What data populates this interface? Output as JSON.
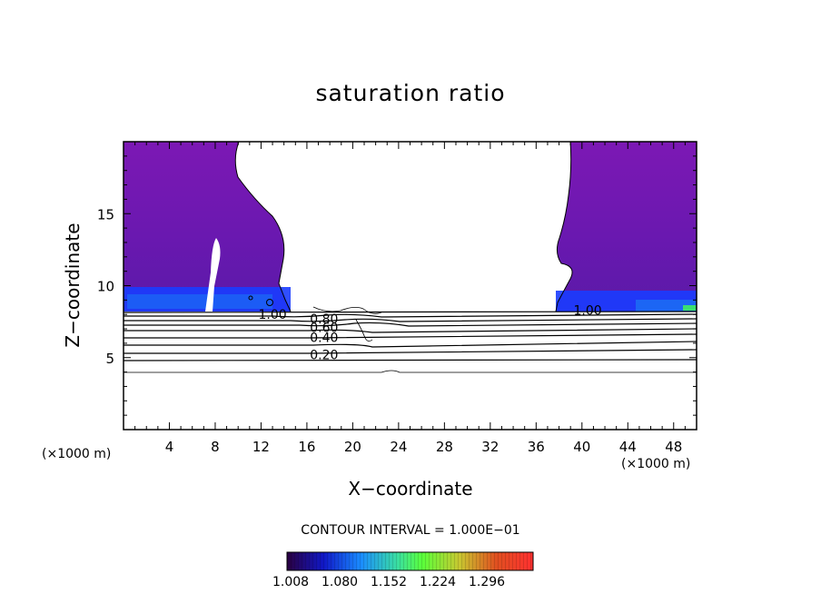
{
  "chart_data": {
    "type": "heatmap",
    "title": "saturation ratio",
    "xlabel": "X−coordinate",
    "ylabel": "Z−coordinate",
    "x_units": "(×1000 m)",
    "y_units": "(×1000 m)",
    "xlim": [
      0,
      50
    ],
    "ylim": [
      0,
      20
    ],
    "x_ticks": [
      4,
      8,
      12,
      16,
      20,
      24,
      28,
      32,
      36,
      40,
      44,
      48
    ],
    "y_ticks": [
      5,
      10,
      15
    ],
    "contour_interval_text": "CONTOUR INTERVAL = 1.000E−01",
    "contour_labels": [
      {
        "text": "1.00",
        "x": 13,
        "z": 8.0
      },
      {
        "text": "0.80",
        "x": 17.5,
        "z": 7.7
      },
      {
        "text": "0.60",
        "x": 17.5,
        "z": 7.1
      },
      {
        "text": "0.40",
        "x": 17.5,
        "z": 6.4
      },
      {
        "text": "0.20",
        "x": 17.5,
        "z": 5.2
      },
      {
        "text": "1.00",
        "x": 40.5,
        "z": 8.3
      }
    ],
    "colorbar": {
      "ticks": [
        "1.008",
        "1.080",
        "1.152",
        "1.224",
        "1.296"
      ],
      "colors": [
        "#2a0040",
        "#1018c8",
        "#1a8cff",
        "#3adfa0",
        "#5aff3a",
        "#c8c830",
        "#e05020",
        "#ff3030"
      ]
    },
    "fill_colors": {
      "dominant": "#7c18b4",
      "dark": "#5a1aa8",
      "low": "#1a3cff",
      "mid": "#18a0f0",
      "green": "#3ae070"
    }
  }
}
